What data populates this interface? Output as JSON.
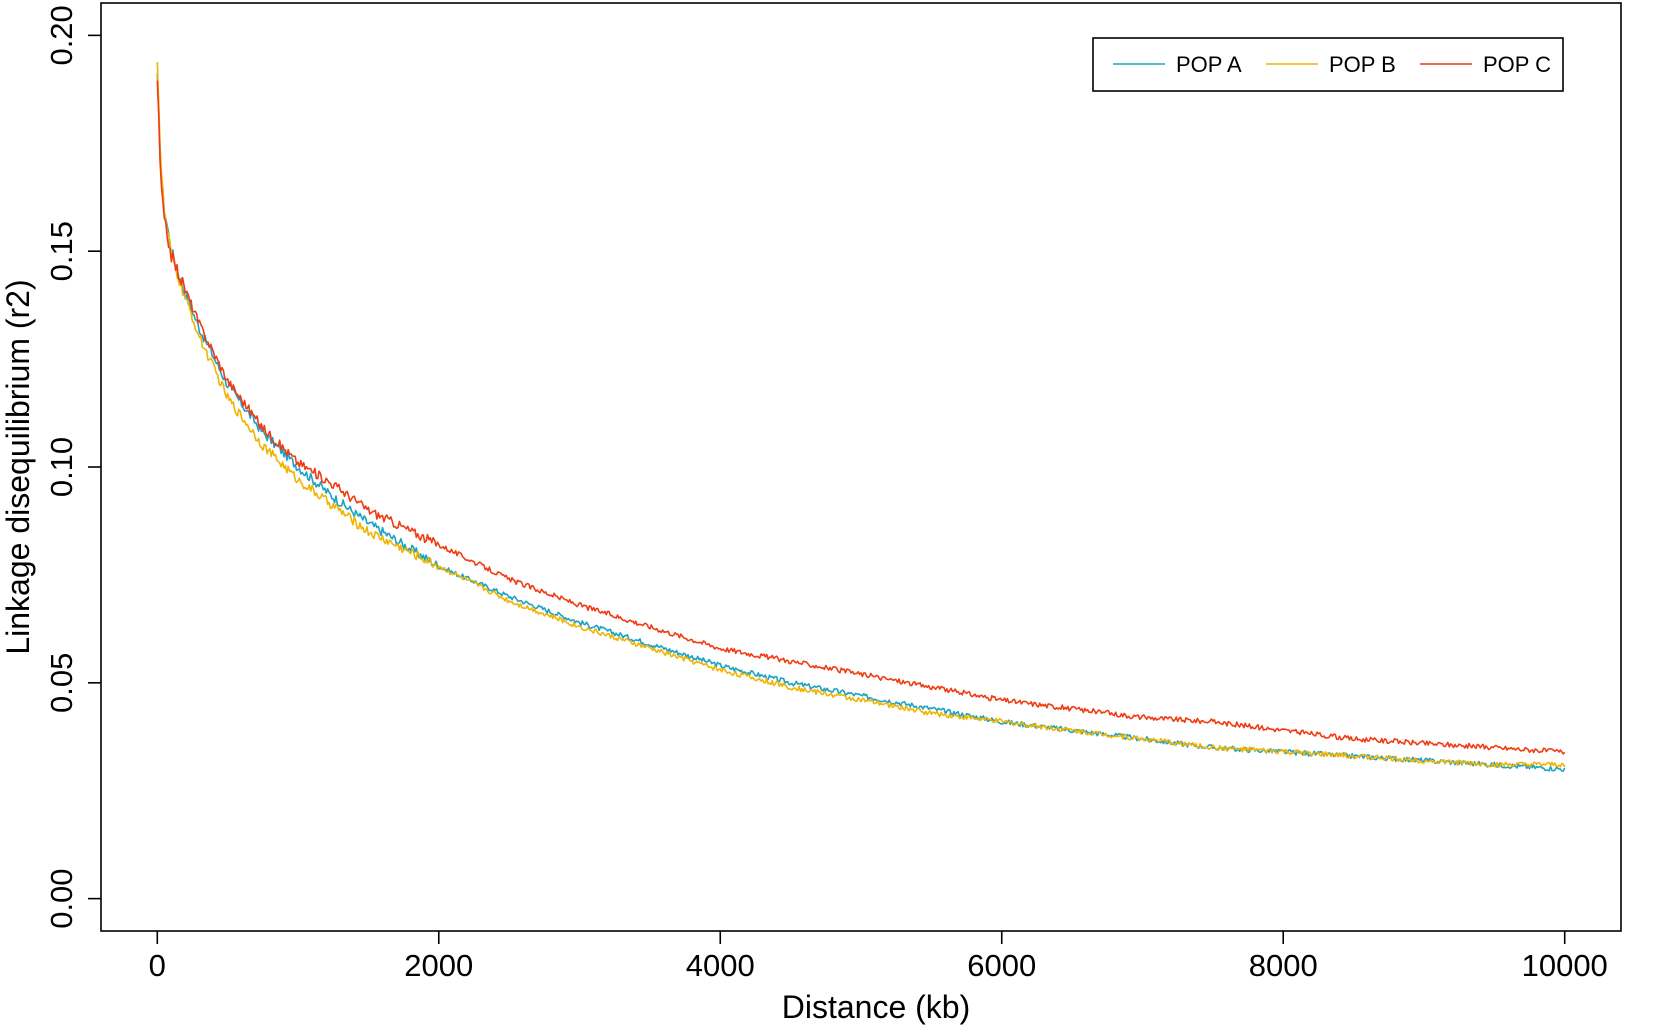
{
  "chart_data": {
    "type": "line",
    "title": "",
    "xlabel": "Distance (kb)",
    "ylabel": "Linkage disequilibrium (r2)",
    "xlim": [
      -400,
      10400
    ],
    "ylim": [
      -0.0075,
      0.2075
    ],
    "x_ticks": [
      0,
      2000,
      4000,
      6000,
      8000,
      10000
    ],
    "x_tick_labels": [
      "0",
      "2000",
      "4000",
      "6000",
      "8000",
      "10000"
    ],
    "y_ticks": [
      0.0,
      0.05,
      0.1,
      0.15,
      0.2
    ],
    "y_tick_labels": [
      "0.00",
      "0.05",
      "0.10",
      "0.15",
      "0.20"
    ],
    "grid": false,
    "legend_position": "top-right",
    "series": [
      {
        "name": "POP A",
        "color": "#1ba3c6",
        "x": [
          0,
          25,
          50,
          100,
          200,
          300,
          500,
          750,
          1000,
          1250,
          1500,
          2000,
          2500,
          3000,
          3500,
          4000,
          4500,
          5000,
          5500,
          6000,
          6500,
          7000,
          7500,
          8000,
          8500,
          9000,
          9500,
          10000
        ],
        "y": [
          0.19,
          0.168,
          0.16,
          0.15,
          0.14,
          0.132,
          0.119,
          0.108,
          0.1,
          0.093,
          0.087,
          0.077,
          0.07,
          0.064,
          0.059,
          0.054,
          0.05,
          0.047,
          0.044,
          0.041,
          0.039,
          0.037,
          0.035,
          0.034,
          0.033,
          0.032,
          0.031,
          0.03
        ]
      },
      {
        "name": "POP B",
        "color": "#f0b400",
        "x": [
          0,
          25,
          50,
          100,
          200,
          300,
          500,
          750,
          1000,
          1250,
          1500,
          2000,
          2500,
          3000,
          3500,
          4000,
          4500,
          5000,
          5500,
          6000,
          6500,
          7000,
          7500,
          8000,
          8500,
          9000,
          9500,
          10000
        ],
        "y": [
          0.195,
          0.17,
          0.159,
          0.149,
          0.139,
          0.13,
          0.116,
          0.105,
          0.097,
          0.091,
          0.085,
          0.077,
          0.069,
          0.063,
          0.058,
          0.053,
          0.049,
          0.046,
          0.043,
          0.041,
          0.039,
          0.037,
          0.035,
          0.034,
          0.033,
          0.032,
          0.031,
          0.031
        ]
      },
      {
        "name": "POP C",
        "color": "#f03c14",
        "x": [
          0,
          25,
          50,
          100,
          200,
          300,
          500,
          750,
          1000,
          1250,
          1500,
          2000,
          2500,
          3000,
          3500,
          4000,
          4500,
          5000,
          5500,
          6000,
          6500,
          7000,
          7500,
          8000,
          8500,
          9000,
          9500,
          10000
        ],
        "y": [
          0.19,
          0.166,
          0.157,
          0.149,
          0.141,
          0.133,
          0.12,
          0.109,
          0.101,
          0.096,
          0.09,
          0.082,
          0.074,
          0.068,
          0.063,
          0.058,
          0.055,
          0.052,
          0.049,
          0.046,
          0.044,
          0.042,
          0.041,
          0.039,
          0.037,
          0.036,
          0.035,
          0.034
        ]
      }
    ]
  }
}
